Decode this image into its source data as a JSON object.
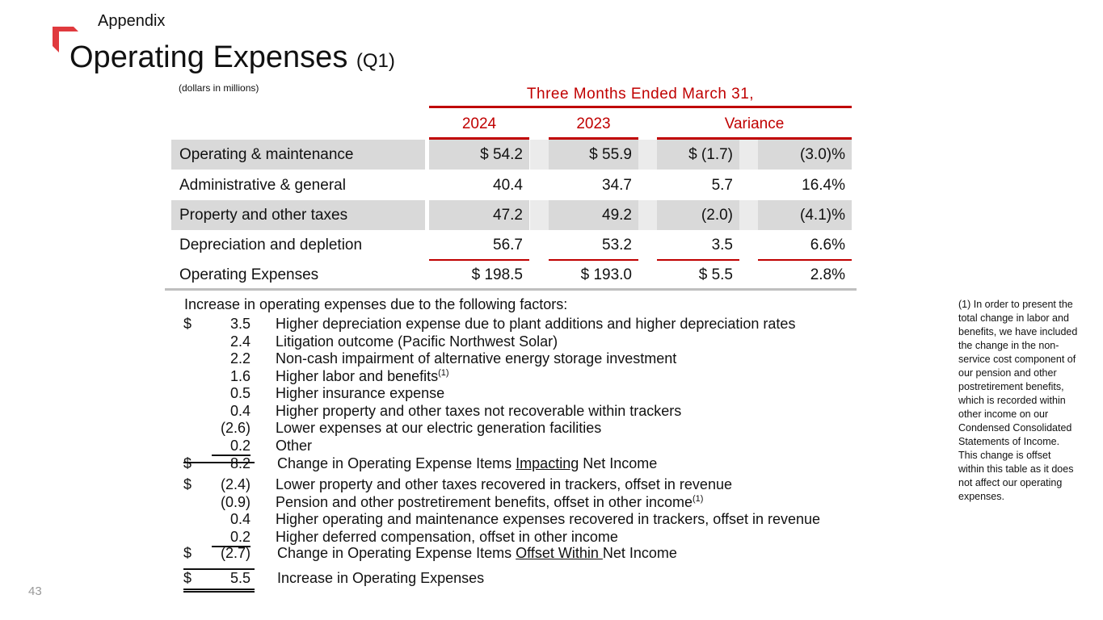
{
  "header": {
    "section": "Appendix",
    "title": "Operating Expenses",
    "title_suffix": "(Q1)",
    "units": "(dollars in millions)"
  },
  "brand_color": "#c00000",
  "table": {
    "period_header": "Three Months Ended March 31,",
    "columns": [
      "2024",
      "2023",
      "Variance"
    ],
    "rows": [
      {
        "label": "Operating & maintenance",
        "y2024": "$ 54.2",
        "y2023": "$ 55.9",
        "var": "$ (1.7)",
        "pct": "(3.0)%"
      },
      {
        "label": "Administrative & general",
        "y2024": "40.4",
        "y2023": "34.7",
        "var": "5.7",
        "pct": "16.4%"
      },
      {
        "label": "Property and other taxes",
        "y2024": "47.2",
        "y2023": "49.2",
        "var": "(2.0)",
        "pct": "(4.1)%"
      },
      {
        "label": "Depreciation and depletion",
        "y2024": "56.7",
        "y2023": "53.2",
        "var": "3.5",
        "pct": "6.6%"
      },
      {
        "label": "Operating Expenses",
        "y2024": "$ 198.5",
        "y2023": "$ 193.0",
        "var": "$ 5.5",
        "pct": "2.8%"
      }
    ]
  },
  "factors": {
    "heading": "Increase in operating expenses due to the following factors:",
    "impacting": [
      {
        "dol": "$",
        "amt": "3.5",
        "desc": "Higher depreciation expense due to plant additions and higher depreciation rates"
      },
      {
        "dol": "",
        "amt": "2.4",
        "desc": "Litigation outcome (Pacific Northwest Solar)"
      },
      {
        "dol": "",
        "amt": "2.2",
        "desc": "Non-cash impairment of alternative energy storage investment"
      },
      {
        "dol": "",
        "amt": "1.6",
        "desc": "Higher labor and benefits",
        "sup": "(1)"
      },
      {
        "dol": "",
        "amt": "0.5",
        "desc": "Higher insurance expense"
      },
      {
        "dol": "",
        "amt": "0.4",
        "desc": "Higher property and other taxes not recoverable within trackers"
      },
      {
        "dol": "",
        "amt": "(2.6)",
        "desc": "Lower expenses at our electric generation facilities"
      },
      {
        "dol": "",
        "amt": "0.2",
        "desc": "Other"
      }
    ],
    "impacting_total": {
      "dol": "$",
      "amt": "8.2",
      "pre": "Change in Operating Expense Items ",
      "u": "Impacting",
      "post": " Net Income"
    },
    "offset": [
      {
        "dol": "$",
        "amt": "(2.4)",
        "desc": "Lower property and other taxes recovered in trackers, offset in revenue"
      },
      {
        "dol": "",
        "amt": "(0.9)",
        "desc": "Pension and other postretirement benefits, offset in other income",
        "sup": "(1)"
      },
      {
        "dol": "",
        "amt": "0.4",
        "desc": "Higher operating and maintenance expenses recovered in trackers, offset in revenue"
      },
      {
        "dol": "",
        "amt": "0.2",
        "desc": "Higher deferred compensation, offset in other income"
      }
    ],
    "offset_total": {
      "dol": "$",
      "amt": "(2.7)",
      "pre": "Change in Operating Expense Items ",
      "u": "Offset Within ",
      "post": "Net Income"
    },
    "grand_total": {
      "dol": "$",
      "amt": "5.5",
      "desc": "Increase in Operating Expenses"
    }
  },
  "footnote": "(1) In order to present the total change in labor and benefits, we have included the change in the non-service cost component of our pension and other postretirement benefits, which is recorded within other income on our Condensed Consolidated Statements of Income. This change is offset within this table as it does not affect our operating expenses.",
  "page_number": "43"
}
